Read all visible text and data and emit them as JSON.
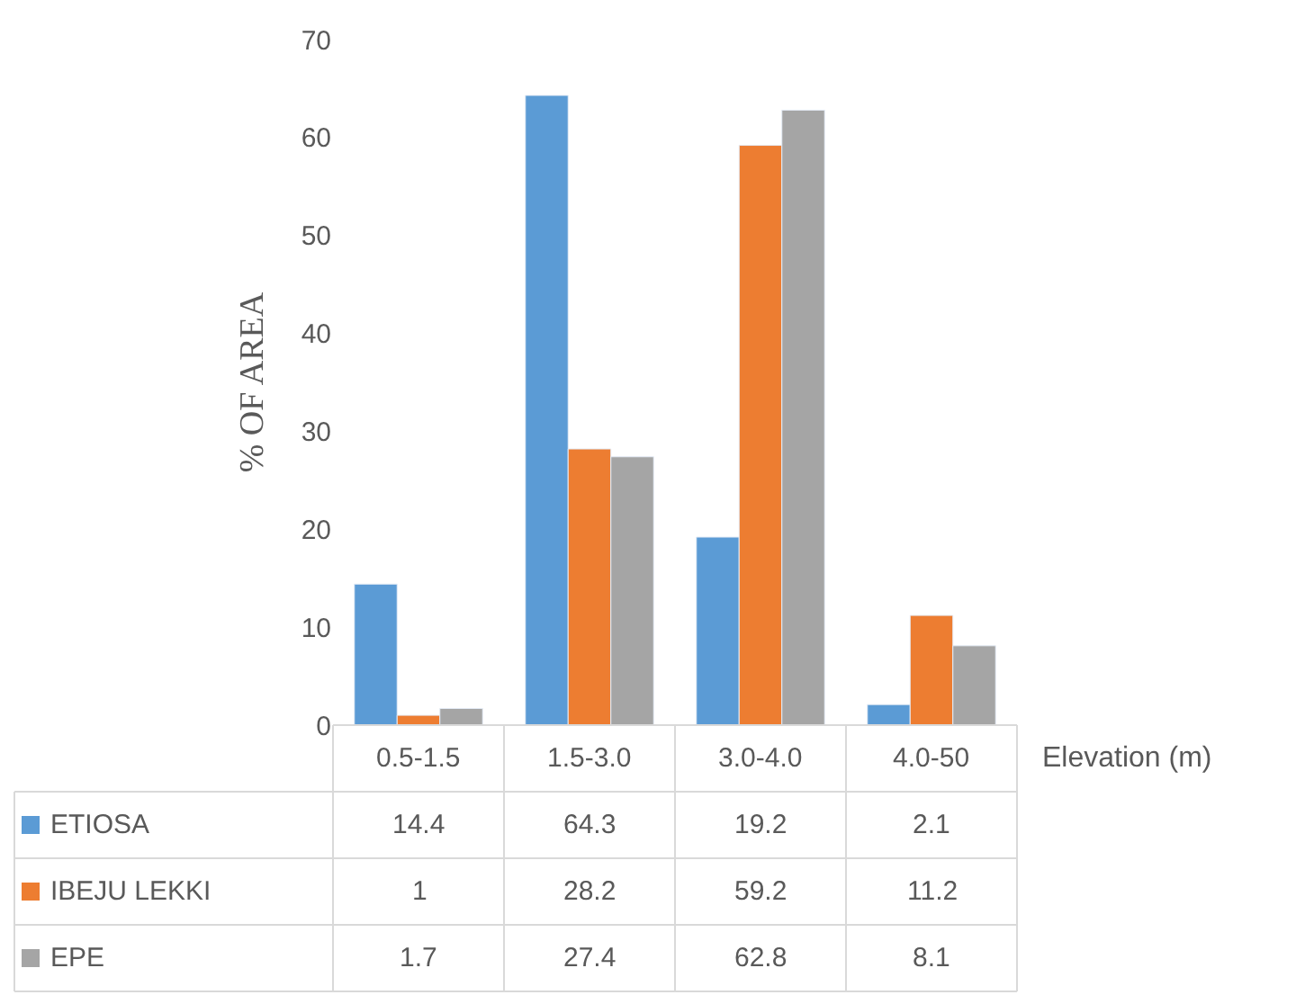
{
  "chart_data": {
    "type": "bar",
    "ylabel": "% OF AREA",
    "xlabel": "Elevation (m)",
    "categories": [
      "0.5-1.5",
      "1.5-3.0",
      "3.0-4.0",
      "4.0-50"
    ],
    "series": [
      {
        "name": "ETIOSA",
        "color": "#5b9bd5",
        "values": [
          14.4,
          64.3,
          19.2,
          2.1
        ]
      },
      {
        "name": "IBEJU LEKKI",
        "color": "#ed7d31",
        "values": [
          1,
          28.2,
          59.2,
          11.2
        ]
      },
      {
        "name": "EPE",
        "color": "#a5a5a5",
        "values": [
          1.7,
          27.4,
          62.8,
          8.1
        ]
      }
    ],
    "ylim": [
      0,
      70
    ],
    "yticks": [
      0,
      10,
      20,
      30,
      40,
      50,
      60,
      70
    ],
    "grid": false,
    "legend": "bottom",
    "data_labels": true
  }
}
